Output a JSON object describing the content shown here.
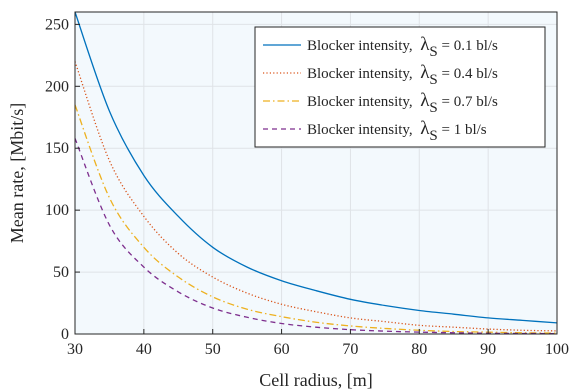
{
  "chart_data": {
    "type": "line",
    "xlabel": "Cell radius, [m]",
    "ylabel": "Mean rate, [Mbit/s]",
    "xlim": [
      30,
      100
    ],
    "ylim": [
      0,
      260
    ],
    "xticks": [
      "30",
      "40",
      "50",
      "60",
      "70",
      "80",
      "90",
      "100"
    ],
    "yticks": [
      "0",
      "50",
      "100",
      "150",
      "200",
      "250"
    ],
    "grid": true,
    "legend_position": "top-right",
    "legend_symbol": "λ",
    "legend_subscript": "S",
    "series": [
      {
        "name": "Blocker intensity,  λS = 0.1 bl/s",
        "legend_prefix": "Blocker intensity,",
        "legend_suffix": "= 0.1 bl/s",
        "color": "#0072bd",
        "dash": "solid",
        "x": [
          30,
          35,
          40,
          45,
          50,
          55,
          60,
          65,
          70,
          75,
          80,
          85,
          90,
          95,
          100
        ],
        "y": [
          260,
          180,
          128,
          95,
          70,
          54,
          43,
          35,
          28,
          23,
          19,
          16,
          13,
          11,
          9
        ]
      },
      {
        "name": "Blocker intensity,  λS = 0.4 bl/s",
        "legend_prefix": "Blocker intensity,",
        "legend_suffix": "= 0.4 bl/s",
        "color": "#d95319",
        "dash": "dotted",
        "x": [
          30,
          35,
          40,
          45,
          50,
          55,
          60,
          65,
          70,
          75,
          80,
          85,
          90,
          95,
          100
        ],
        "y": [
          220,
          140,
          95,
          65,
          46,
          33,
          24,
          18,
          13,
          10,
          7,
          5.5,
          4,
          3,
          2.5
        ]
      },
      {
        "name": "Blocker intensity,  λS = 0.7 bl/s",
        "legend_prefix": "Blocker intensity,",
        "legend_suffix": "= 0.7 bl/s",
        "color": "#edb120",
        "dash": "dashdot",
        "x": [
          30,
          35,
          40,
          45,
          50,
          55,
          60,
          65,
          70,
          75,
          80,
          85,
          90,
          95,
          100
        ],
        "y": [
          185,
          110,
          70,
          46,
          30,
          20,
          14,
          9.5,
          6.5,
          4.5,
          3,
          2,
          1.5,
          1,
          0.7
        ]
      },
      {
        "name": "Blocker intensity,  λS = 1 bl/s",
        "legend_prefix": "Blocker intensity,",
        "legend_suffix": "= 1 bl/s",
        "color": "#7e2f8e",
        "dash": "dashed",
        "x": [
          30,
          35,
          40,
          45,
          50,
          55,
          60,
          65,
          70,
          75,
          80,
          85,
          90,
          95,
          100
        ],
        "y": [
          158,
          88,
          54,
          34,
          21,
          13.5,
          8.5,
          5.5,
          3.5,
          2.3,
          1.5,
          1,
          0.6,
          0.4,
          0.3
        ]
      }
    ]
  }
}
